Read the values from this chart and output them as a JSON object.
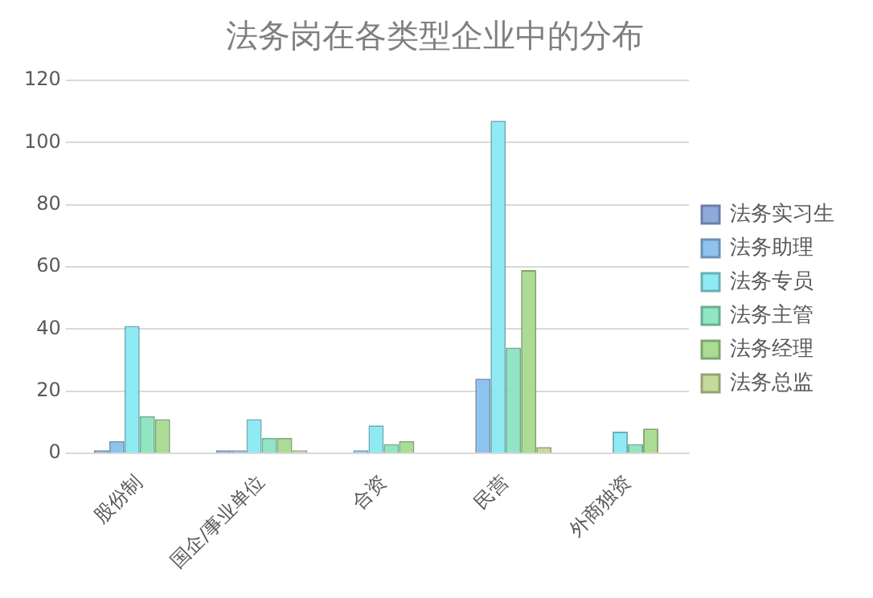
{
  "chart_data": {
    "type": "bar",
    "title": "法务岗在各类型企业中的分布",
    "categories": [
      "股份制",
      "国企/事业单位",
      "合资",
      "民营",
      "外商独资"
    ],
    "series": [
      {
        "name": "法务实习生",
        "color": "#8eaadc",
        "values": [
          1,
          1,
          0,
          0,
          0
        ]
      },
      {
        "name": "法务助理",
        "color": "#8fc3ef",
        "values": [
          4,
          1,
          1,
          24,
          0
        ]
      },
      {
        "name": "法务专员",
        "color": "#8eeaf3",
        "values": [
          41,
          11,
          9,
          107,
          7
        ]
      },
      {
        "name": "法务主管",
        "color": "#90e6c3",
        "values": [
          12,
          5,
          3,
          34,
          3
        ]
      },
      {
        "name": "法务经理",
        "color": "#abdc94",
        "values": [
          11,
          5,
          4,
          59,
          8
        ]
      },
      {
        "name": "法务总监",
        "color": "#c5d99a",
        "values": [
          0,
          1,
          0,
          2,
          0
        ]
      }
    ],
    "ylim": [
      0,
      120
    ],
    "yticks": [
      0,
      20,
      40,
      60,
      80,
      100,
      120
    ],
    "grid": "y",
    "legend": "right"
  }
}
